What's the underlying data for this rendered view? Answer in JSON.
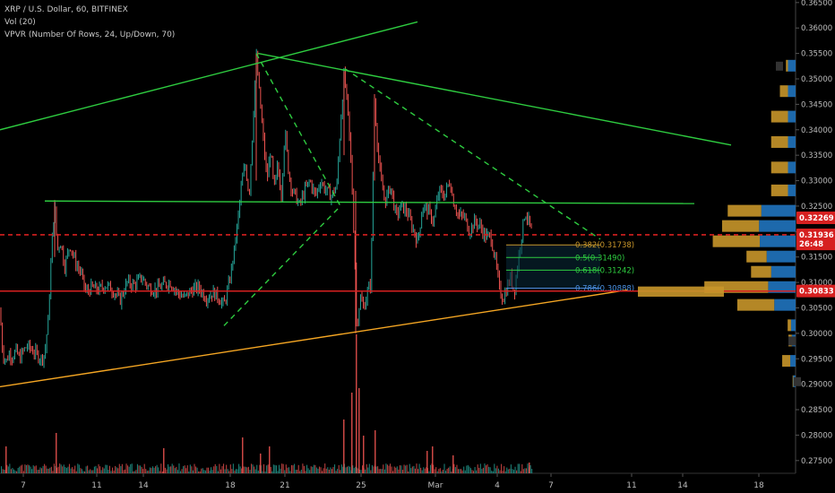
{
  "legend": {
    "symbol_line": "XRP / U.S. Dollar, 60, BITFINEX",
    "vol_line": "Vol (20)",
    "vpvr_line": "VPVR (Number Of Rows, 24, Up/Down, 70)"
  },
  "colors": {
    "background": "#000000",
    "up_candle": "#26a69a",
    "down_candle": "#ef5350",
    "green_line": "#2ecc40",
    "orange_line": "#f5a623",
    "red_line": "#d62020",
    "vpvr_up": "#1f6fb5",
    "vpvr_down": "#c8962a"
  },
  "chart_data": {
    "type": "candlestick",
    "symbol": "XRP / U.S. Dollar",
    "interval": "60",
    "exchange": "BITFINEX",
    "ylim": [
      0.2725,
      0.3655
    ],
    "y_ticks": [
      "0.27500",
      "0.28000",
      "0.28500",
      "0.29000",
      "0.29500",
      "0.30000",
      "0.30500",
      "0.31000",
      "0.31500",
      "0.32000",
      "0.32500",
      "0.33000",
      "0.33500",
      "0.34000",
      "0.34500",
      "0.35000",
      "0.35500",
      "0.36000",
      "0.36500"
    ],
    "x_ticks": [
      "7",
      "11",
      "14",
      "18",
      "21",
      "25",
      "Mar",
      "4",
      "7",
      "11",
      "14",
      "18"
    ],
    "price_path": [
      [
        0,
        0.3045
      ],
      [
        3,
        0.296
      ],
      [
        7,
        0.2945
      ],
      [
        10,
        0.296
      ],
      [
        14,
        0.2955
      ],
      [
        18,
        0.2965
      ],
      [
        22,
        0.295
      ],
      [
        26,
        0.2965
      ],
      [
        30,
        0.2975
      ],
      [
        34,
        0.297
      ],
      [
        40,
        0.296
      ],
      [
        46,
        0.295
      ],
      [
        50,
        0.296
      ],
      [
        54,
        0.303
      ],
      [
        58,
        0.318
      ],
      [
        61,
        0.3255
      ],
      [
        64,
        0.3165
      ],
      [
        68,
        0.318
      ],
      [
        72,
        0.313
      ],
      [
        78,
        0.3175
      ],
      [
        84,
        0.314
      ],
      [
        90,
        0.312
      ],
      [
        96,
        0.308
      ],
      [
        102,
        0.309
      ],
      [
        110,
        0.3085
      ],
      [
        118,
        0.3095
      ],
      [
        126,
        0.3085
      ],
      [
        134,
        0.3065
      ],
      [
        142,
        0.31
      ],
      [
        150,
        0.3095
      ],
      [
        158,
        0.311
      ],
      [
        166,
        0.309
      ],
      [
        174,
        0.3085
      ],
      [
        182,
        0.3095
      ],
      [
        190,
        0.31
      ],
      [
        198,
        0.308
      ],
      [
        206,
        0.307
      ],
      [
        214,
        0.3085
      ],
      [
        222,
        0.309
      ],
      [
        230,
        0.307
      ],
      [
        238,
        0.308
      ],
      [
        244,
        0.307
      ],
      [
        250,
        0.3055
      ],
      [
        256,
        0.31
      ],
      [
        262,
        0.317
      ],
      [
        266,
        0.323
      ],
      [
        270,
        0.33
      ],
      [
        274,
        0.333
      ],
      [
        278,
        0.327
      ],
      [
        282,
        0.34
      ],
      [
        286,
        0.3545
      ],
      [
        290,
        0.346
      ],
      [
        294,
        0.338
      ],
      [
        298,
        0.33
      ],
      [
        302,
        0.336
      ],
      [
        306,
        0.328
      ],
      [
        310,
        0.333
      ],
      [
        314,
        0.327
      ],
      [
        318,
        0.34
      ],
      [
        322,
        0.332
      ],
      [
        326,
        0.328
      ],
      [
        330,
        0.327
      ],
      [
        334,
        0.325
      ],
      [
        340,
        0.328
      ],
      [
        346,
        0.33
      ],
      [
        352,
        0.327
      ],
      [
        358,
        0.33
      ],
      [
        364,
        0.328
      ],
      [
        370,
        0.327
      ],
      [
        376,
        0.329
      ],
      [
        380,
        0.341
      ],
      [
        384,
        0.351
      ],
      [
        388,
        0.344
      ],
      [
        392,
        0.333
      ],
      [
        396,
        0.315
      ],
      [
        398,
        0.301
      ],
      [
        402,
        0.307
      ],
      [
        406,
        0.305
      ],
      [
        410,
        0.308
      ],
      [
        414,
        0.31
      ],
      [
        418,
        0.346
      ],
      [
        422,
        0.335
      ],
      [
        426,
        0.329
      ],
      [
        430,
        0.326
      ],
      [
        436,
        0.329
      ],
      [
        442,
        0.323
      ],
      [
        448,
        0.325
      ],
      [
        454,
        0.324
      ],
      [
        460,
        0.321
      ],
      [
        466,
        0.318
      ],
      [
        472,
        0.325
      ],
      [
        478,
        0.324
      ],
      [
        484,
        0.322
      ],
      [
        490,
        0.328
      ],
      [
        496,
        0.327
      ],
      [
        502,
        0.33
      ],
      [
        506,
        0.326
      ],
      [
        512,
        0.323
      ],
      [
        518,
        0.323
      ],
      [
        524,
        0.32
      ],
      [
        530,
        0.322
      ],
      [
        536,
        0.321
      ],
      [
        542,
        0.319
      ],
      [
        548,
        0.319
      ],
      [
        554,
        0.313
      ],
      [
        558,
        0.308
      ],
      [
        562,
        0.307
      ],
      [
        566,
        0.309
      ],
      [
        570,
        0.311
      ],
      [
        574,
        0.308
      ],
      [
        578,
        0.314
      ],
      [
        582,
        0.319
      ],
      [
        586,
        0.324
      ],
      [
        590,
        0.322
      ],
      [
        594,
        0.3194
      ]
    ],
    "volume_spikes": [
      [
        6,
        30
      ],
      [
        62,
        45
      ],
      [
        182,
        28
      ],
      [
        270,
        40
      ],
      [
        290,
        22
      ],
      [
        300,
        30
      ],
      [
        383,
        60
      ],
      [
        392,
        90
      ],
      [
        397,
        155
      ],
      [
        400,
        95
      ],
      [
        405,
        42
      ],
      [
        418,
        48
      ],
      [
        476,
        25
      ],
      [
        482,
        30
      ],
      [
        505,
        20
      ],
      [
        590,
        12
      ]
    ],
    "vpvr_rows": [
      {
        "price": 0.3525,
        "up": 0.1,
        "down": 0.03
      },
      {
        "price": 0.3475,
        "up": 0.1,
        "down": 0.12
      },
      {
        "price": 0.3425,
        "up": 0.1,
        "down": 0.25
      },
      {
        "price": 0.3375,
        "up": 0.1,
        "down": 0.25
      },
      {
        "price": 0.3325,
        "up": 0.1,
        "down": 0.25
      },
      {
        "price": 0.328,
        "up": 0.1,
        "down": 0.25
      },
      {
        "price": 0.324,
        "up": 0.45,
        "down": 0.5
      },
      {
        "price": 0.321,
        "up": 0.48,
        "down": 0.55
      },
      {
        "price": 0.318,
        "up": 0.47,
        "down": 0.7
      },
      {
        "price": 0.315,
        "up": 0.38,
        "down": 0.3
      },
      {
        "price": 0.312,
        "up": 0.32,
        "down": 0.3
      },
      {
        "price": 0.309,
        "up": 0.36,
        "down": 0.95
      },
      {
        "price": 0.3055,
        "up": 0.28,
        "down": 0.55
      },
      {
        "price": 0.3015,
        "up": 0.06,
        "down": 0.05
      },
      {
        "price": 0.2985,
        "up": 0.05,
        "down": 0.05
      },
      {
        "price": 0.2945,
        "up": 0.07,
        "down": 0.12
      },
      {
        "price": 0.2905,
        "up": 0.03,
        "down": 0.01
      }
    ],
    "trend_lines": [
      {
        "name": "upper-green",
        "color": "green",
        "style": "solid",
        "p1": [
          0,
          0.34
        ],
        "p2": [
          466,
          0.3612
        ]
      },
      {
        "name": "descending-green",
        "color": "green",
        "style": "solid",
        "p1": [
          288,
          0.355
        ],
        "p2": [
          816,
          0.337
        ]
      },
      {
        "name": "horizontal-green",
        "color": "green",
        "style": "solid",
        "p1": [
          50,
          0.326
        ],
        "p2": [
          775,
          0.3255
        ]
      },
      {
        "name": "dashed-1",
        "color": "green",
        "style": "dashed",
        "p1": [
          286,
          0.355
        ],
        "p2": [
          380,
          0.325
        ]
      },
      {
        "name": "dashed-2",
        "color": "green",
        "style": "dashed",
        "p1": [
          250,
          0.3015
        ],
        "p2": [
          380,
          0.325
        ]
      },
      {
        "name": "dashed-3",
        "color": "green",
        "style": "dashed",
        "p1": [
          385,
          0.352
        ],
        "p2": [
          670,
          0.3185
        ]
      },
      {
        "name": "orange-support",
        "color": "orange",
        "style": "solid",
        "p1": [
          0,
          0.2895
        ],
        "p2": [
          700,
          0.3085
        ]
      },
      {
        "name": "red-support",
        "color": "red",
        "style": "solid",
        "p1": [
          0,
          0.3083
        ],
        "p2": [
          888,
          0.3083
        ]
      },
      {
        "name": "red-dashed-current",
        "color": "red",
        "style": "dashed",
        "p1": [
          0,
          0.31936
        ],
        "p2": [
          888,
          0.31936
        ]
      }
    ],
    "fib_levels": [
      {
        "ratio": "0.382",
        "price": 0.31738,
        "label": "0.382(0.31738)",
        "color": "#c8962a"
      },
      {
        "ratio": "0.5",
        "price": 0.3149,
        "label": "0.5(0.31490)",
        "color": "#2ecc40"
      },
      {
        "ratio": "0.618",
        "price": 0.31242,
        "label": "0.618(0.31242)",
        "color": "#2ecc40"
      },
      {
        "ratio": "0.786",
        "price": 0.30888,
        "label": "0.786(0.30888)",
        "color": "#4a90e2"
      }
    ],
    "price_labels": [
      {
        "text": "0.32269",
        "price": 0.32269,
        "bg": "#d62020",
        "fg": "#ffffff"
      },
      {
        "text": "0.31936",
        "price": 0.31936,
        "bg": "#d62020",
        "fg": "#ffffff"
      },
      {
        "text": "26:48",
        "price": 0.31756,
        "bg": "#d62020",
        "fg": "#ffffff"
      },
      {
        "text": "0.30833",
        "price": 0.30833,
        "bg": "#d62020",
        "fg": "#ffffff"
      }
    ]
  }
}
